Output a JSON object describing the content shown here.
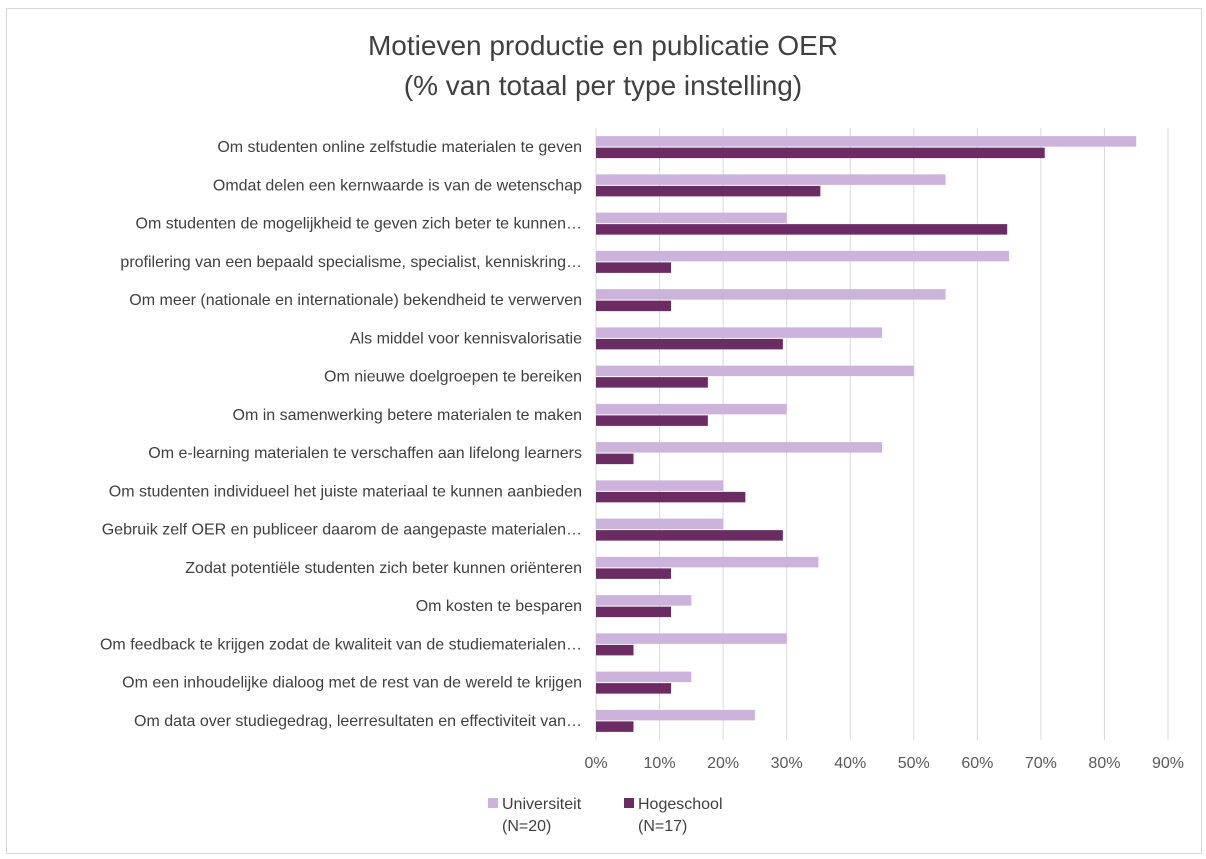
{
  "chart_data": {
    "type": "bar",
    "orientation": "horizontal",
    "title": [
      "Motieven productie en publicatie OER",
      "(% van totaal per type instelling)"
    ],
    "categories": [
      "Om studenten online zelfstudie materialen te geven",
      "Omdat delen een kernwaarde is van de wetenschap",
      "Om studenten de mogelijkheid te geven zich beter te kunnen…",
      "profilering van een bepaald specialisme, specialist, kenniskring…",
      "Om meer (nationale en internationale) bekendheid te verwerven",
      "Als middel voor kennisvalorisatie",
      "Om nieuwe doelgroepen te bereiken",
      "Om in samenwerking betere materialen te maken",
      "Om e-learning materialen te verschaffen aan lifelong learners",
      "Om studenten individueel het juiste materiaal te kunnen aanbieden",
      "Gebruik zelf OER en publiceer daarom de aangepaste materialen…",
      "Zodat potentiële studenten zich beter kunnen oriënteren",
      "Om kosten te besparen",
      "Om feedback te krijgen zodat de kwaliteit van de studiematerialen…",
      "Om een inhoudelijke dialoog met de rest van de wereld te krijgen",
      "Om data over studiegedrag, leerresultaten en effectiviteit van…"
    ],
    "series": [
      {
        "name": "Universiteit",
        "n_label": "(N=20)",
        "color": "#ccb3db",
        "values": [
          85,
          55,
          30,
          65,
          55,
          45,
          50,
          30,
          45,
          20,
          20,
          35,
          15,
          30,
          15,
          25
        ]
      },
      {
        "name": "Hogeschool",
        "n_label": "(N=17)",
        "color": "#6b2c63",
        "values": [
          70.6,
          35.3,
          64.7,
          11.8,
          11.8,
          29.4,
          17.6,
          17.6,
          5.9,
          23.5,
          29.4,
          11.8,
          11.8,
          5.9,
          11.8,
          5.9
        ]
      }
    ],
    "xlim": [
      0,
      90
    ],
    "xticks": [
      "0%",
      "10%",
      "20%",
      "30%",
      "40%",
      "50%",
      "60%",
      "70%",
      "80%",
      "90%"
    ],
    "grid": "vertical",
    "legend_position": "bottom-center"
  }
}
